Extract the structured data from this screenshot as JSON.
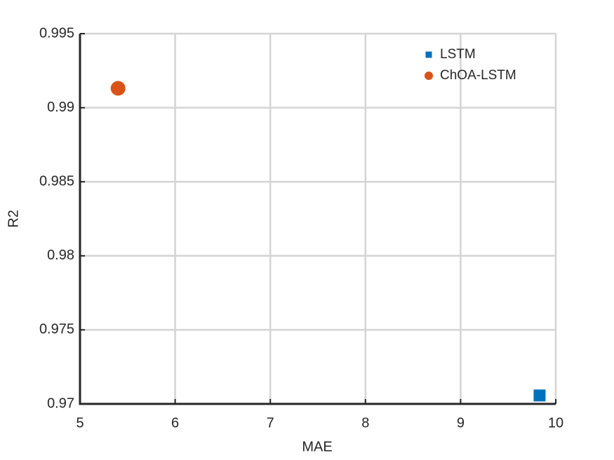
{
  "chart_data": {
    "type": "scatter",
    "x_label": "MAE",
    "y_label": "R2",
    "series": [
      {
        "name": "LSTM",
        "color": "#0072bd",
        "marker": "square",
        "x": [
          9.83
        ],
        "values": [
          0.97057
        ]
      },
      {
        "name": "ChOA-LSTM",
        "color": "#d95319",
        "marker": "circle",
        "x": [
          5.4
        ],
        "values": [
          0.99131
        ]
      }
    ],
    "xlim": [
      5,
      10
    ],
    "xticks": [
      5,
      6,
      7,
      8,
      9,
      10
    ],
    "ylim": [
      0.97,
      0.995
    ],
    "yticks": [
      0.97,
      0.975,
      0.98,
      0.985,
      0.99,
      0.995
    ],
    "grid": true,
    "legend": "northeast"
  }
}
